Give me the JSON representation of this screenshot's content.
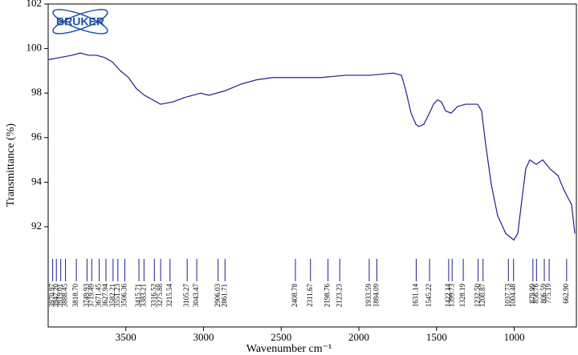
{
  "chart_data": {
    "type": "line",
    "logo": "BRUKER",
    "x_label": "Wavenumber cm⁻¹",
    "y_label": "Transmittance (%)",
    "xlim": [
      4000,
      600
    ],
    "ylim": [
      87.5,
      102
    ],
    "xticks": [
      3500,
      3000,
      2500,
      2000,
      1500,
      1000
    ],
    "yticks": [
      92,
      94,
      96,
      98,
      100,
      102
    ],
    "x": [
      4000,
      3922,
      3845,
      3793,
      3742,
      3690,
      3638,
      3587,
      3535,
      3483,
      3432,
      3380,
      3328,
      3277,
      3199,
      3122,
      3018,
      2967,
      2863,
      2760,
      2657,
      2553,
      2398,
      2243,
      2088,
      1933,
      1778,
      1726,
      1701,
      1664,
      1633,
      1613,
      1582,
      1546,
      1520,
      1494,
      1468,
      1442,
      1406,
      1365,
      1313,
      1236,
      1210,
      1184,
      1148,
      1107,
      1055,
      1003,
      977,
      951,
      926,
      900,
      858,
      817,
      770,
      719,
      683,
      662,
      631,
      610
    ],
    "series": [
      {
        "name": "Transmittance",
        "color": "#1f1f8f",
        "values": [
          99.5,
          99.6,
          99.7,
          99.8,
          99.7,
          99.7,
          99.6,
          99.4,
          99.0,
          98.7,
          98.2,
          97.9,
          97.7,
          97.5,
          97.6,
          97.8,
          98.0,
          97.9,
          98.1,
          98.4,
          98.6,
          98.7,
          98.7,
          98.7,
          98.8,
          98.8,
          98.9,
          98.8,
          98.2,
          97.1,
          96.6,
          96.5,
          96.6,
          97.1,
          97.5,
          97.7,
          97.6,
          97.2,
          97.1,
          97.4,
          97.5,
          97.5,
          97.2,
          95.7,
          93.9,
          92.5,
          91.7,
          91.4,
          91.7,
          93.2,
          94.6,
          95.0,
          94.8,
          95.0,
          94.6,
          94.3,
          93.7,
          93.4,
          93.0,
          91.7
        ]
      }
    ],
    "peaks": [
      3970.97,
      {
        "value": 3947.2,
        "label": "3947.20"
      },
      3919.01,
      3888.45,
      {
        "value": 3818.7,
        "label": "3818.70"
      },
      3749.93,
      3719.49,
      3671.45,
      3627.94,
      3582.21,
      3551.23,
      3506.36,
      3415.71,
      3383.21,
      3316.52,
      3275.88,
      3215.54,
      3105.27,
      3043.47,
      2906.03,
      2861.71,
      2408.78,
      2311.67,
      2198.76,
      2123.23,
      1933.59,
      1884.09,
      1631.14,
      1545.22,
      1422.14,
      1399.73,
      1328.19,
      {
        "value": 1232.5,
        "label": "1232.50"
      },
      1200.87,
      1037.73,
      1004.48,
      879.99,
      856.76,
      806.59,
      775.19,
      {
        "value": 662.9,
        "label": "662.90"
      }
    ]
  }
}
